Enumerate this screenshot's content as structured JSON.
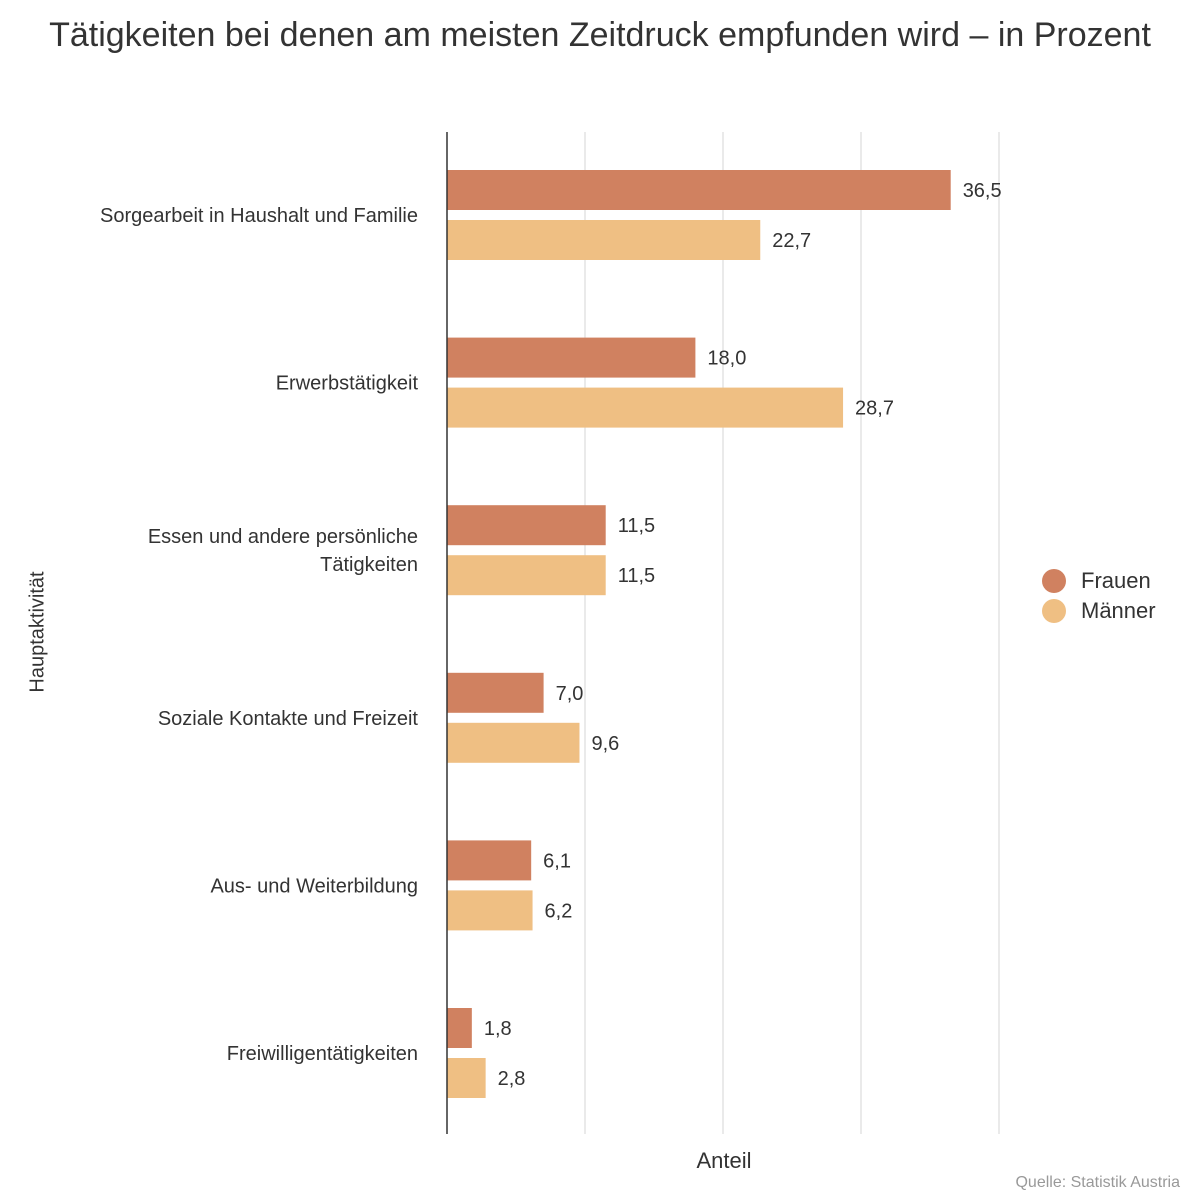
{
  "chart_data": {
    "type": "bar",
    "orientation": "horizontal",
    "title": "Tätigkeiten bei denen am meisten Zeitdruck empfunden wird – in Prozent",
    "xlabel": "Anteil",
    "ylabel": "Hauptaktivität",
    "xlim": [
      0,
      40
    ],
    "grid": true,
    "legend_position": "right",
    "categories": [
      "Sorgearbeit in Haushalt und Familie",
      "Erwerbstätigkeit",
      "Essen und andere persönliche Tätigkeiten",
      "Soziale Kontakte und Freizeit",
      "Aus- und Weiterbildung",
      "Freiwilligentätigkeiten"
    ],
    "category_lines": [
      [
        "Sorgearbeit in Haushalt und Familie"
      ],
      [
        "Erwerbstätigkeit"
      ],
      [
        "Essen und andere persönliche",
        "Tätigkeiten"
      ],
      [
        "Soziale Kontakte und Freizeit"
      ],
      [
        "Aus- und Weiterbildung"
      ],
      [
        "Freiwilligentätigkeiten"
      ]
    ],
    "series": [
      {
        "name": "Frauen",
        "color": "#d08160",
        "values": [
          36.5,
          18.0,
          11.5,
          7.0,
          6.1,
          1.8
        ],
        "labels": [
          "36,5",
          "18,0",
          "11,5",
          "7,0",
          "6,1",
          "1,8"
        ]
      },
      {
        "name": "Männer",
        "color": "#efbf83",
        "values": [
          22.7,
          28.7,
          11.5,
          9.6,
          6.2,
          2.8
        ],
        "labels": [
          "22,7",
          "28,7",
          "11,5",
          "9,6",
          "6,2",
          "2,8"
        ]
      }
    ],
    "source": "Quelle: Statistik Austria"
  }
}
